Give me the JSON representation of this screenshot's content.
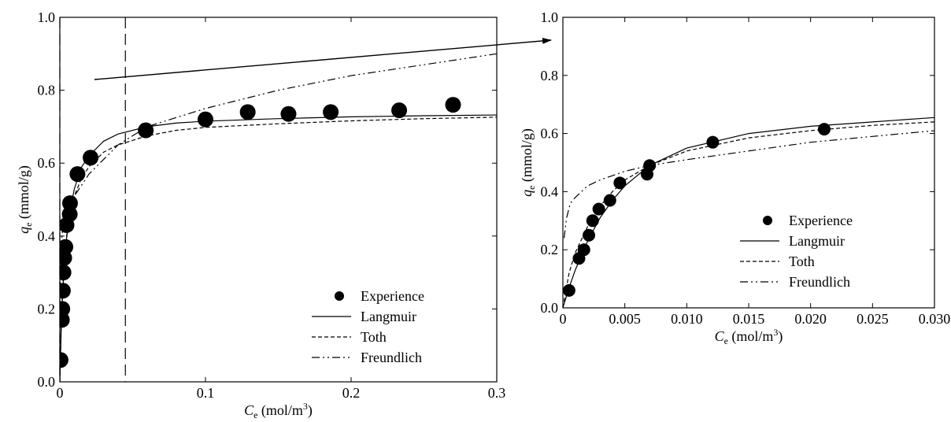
{
  "chart_data": [
    {
      "type": "scatter",
      "panel": "left",
      "title": "",
      "xlabel": {
        "var": "C",
        "sub": "e",
        "unit": " (mol/m",
        "sup": "3",
        "close": ")"
      },
      "ylabel": {
        "var": "q",
        "sub": "e",
        "unit": " (mmol/g)"
      },
      "xlim": [
        0,
        0.3
      ],
      "ylim": [
        0,
        1.0
      ],
      "xticks": [
        0,
        0.1,
        0.2,
        0.3
      ],
      "xtick_labels": [
        "0",
        "0.1",
        "0.2",
        "0.3"
      ],
      "yticks": [
        0,
        0.2,
        0.4,
        0.6,
        0.8,
        1.0
      ],
      "ytick_labels": [
        "0.0",
        "0.2",
        "0.4",
        "0.6",
        "0.8",
        "1.0"
      ],
      "grid": false,
      "legend_position": "bottom-right",
      "zoom_region_x": [
        0,
        0.045
      ],
      "series": [
        {
          "name": "Experience",
          "style": "markers",
          "x": [
            0.0005,
            0.0014,
            0.0017,
            0.0021,
            0.0025,
            0.003,
            0.0038,
            0.0046,
            0.0068,
            0.007,
            0.0121,
            0.0211,
            0.059,
            0.1,
            0.129,
            0.157,
            0.186,
            0.233,
            0.27
          ],
          "y": [
            0.06,
            0.17,
            0.2,
            0.25,
            0.3,
            0.34,
            0.37,
            0.43,
            0.46,
            0.49,
            0.57,
            0.615,
            0.69,
            0.72,
            0.74,
            0.735,
            0.74,
            0.745,
            0.76
          ]
        },
        {
          "name": "Langmuir",
          "style": "solid",
          "x": [
            0,
            0.001,
            0.002,
            0.004,
            0.006,
            0.008,
            0.01,
            0.015,
            0.02,
            0.03,
            0.04,
            0.06,
            0.08,
            0.1,
            0.15,
            0.2,
            0.25,
            0.3
          ],
          "y": [
            0,
            0.15,
            0.25,
            0.37,
            0.44,
            0.49,
            0.53,
            0.59,
            0.62,
            0.66,
            0.68,
            0.7,
            0.71,
            0.715,
            0.722,
            0.727,
            0.73,
            0.732
          ]
        },
        {
          "name": "Toth",
          "style": "dashed",
          "x": [
            0,
            0.001,
            0.002,
            0.004,
            0.006,
            0.008,
            0.01,
            0.015,
            0.02,
            0.03,
            0.04,
            0.06,
            0.08,
            0.1,
            0.15,
            0.2,
            0.25,
            0.3
          ],
          "y": [
            0,
            0.17,
            0.27,
            0.38,
            0.44,
            0.48,
            0.51,
            0.56,
            0.59,
            0.63,
            0.65,
            0.675,
            0.69,
            0.698,
            0.708,
            0.716,
            0.722,
            0.726
          ]
        },
        {
          "name": "Freundlich",
          "style": "dash-dot-dot",
          "x": [
            0.0001,
            0.0005,
            0.001,
            0.002,
            0.005,
            0.01,
            0.02,
            0.04,
            0.06,
            0.1,
            0.15,
            0.2,
            0.25,
            0.3
          ],
          "y": [
            0.24,
            0.35,
            0.38,
            0.42,
            0.47,
            0.51,
            0.57,
            0.65,
            0.7,
            0.75,
            0.8,
            0.84,
            0.87,
            0.9
          ]
        }
      ]
    },
    {
      "type": "scatter",
      "panel": "right",
      "title": "",
      "xlabel": {
        "var": "C",
        "sub": "e",
        "unit": " (mol/m",
        "sup": "3",
        "close": ")"
      },
      "ylabel": {
        "var": "q",
        "sub": "e",
        "unit": " (mmol/g)"
      },
      "xlim": [
        0,
        0.03
      ],
      "ylim": [
        0,
        1.0
      ],
      "xticks": [
        0,
        0.005,
        0.01,
        0.015,
        0.02,
        0.025,
        0.03
      ],
      "xtick_labels": [
        "0",
        "0.005",
        "0.010",
        "0.015",
        "0.020",
        "0.025",
        "0.030"
      ],
      "yticks": [
        0,
        0.2,
        0.4,
        0.6,
        0.8,
        1.0
      ],
      "ytick_labels": [
        "0.0",
        "0.2",
        "0.4",
        "0.6",
        "0.8",
        "1.0"
      ],
      "grid": false,
      "legend_position": "center-right",
      "series": [
        {
          "name": "Experience",
          "style": "markers",
          "x": [
            0.0005,
            0.0013,
            0.0017,
            0.0021,
            0.0024,
            0.0029,
            0.0038,
            0.0046,
            0.0068,
            0.007,
            0.0121,
            0.0211
          ],
          "y": [
            0.06,
            0.17,
            0.2,
            0.25,
            0.3,
            0.34,
            0.37,
            0.43,
            0.46,
            0.49,
            0.57,
            0.615
          ]
        },
        {
          "name": "Langmuir",
          "style": "solid",
          "x": [
            0,
            0.0005,
            0.001,
            0.002,
            0.003,
            0.004,
            0.005,
            0.007,
            0.01,
            0.015,
            0.02,
            0.025,
            0.03
          ],
          "y": [
            0,
            0.07,
            0.13,
            0.23,
            0.31,
            0.37,
            0.42,
            0.49,
            0.55,
            0.6,
            0.625,
            0.64,
            0.655
          ]
        },
        {
          "name": "Toth",
          "style": "dashed",
          "x": [
            0,
            0.0005,
            0.001,
            0.002,
            0.003,
            0.004,
            0.005,
            0.007,
            0.01,
            0.015,
            0.02,
            0.025,
            0.03
          ],
          "y": [
            0,
            0.12,
            0.19,
            0.28,
            0.35,
            0.4,
            0.44,
            0.49,
            0.54,
            0.585,
            0.61,
            0.628,
            0.64
          ]
        },
        {
          "name": "Freundlich",
          "style": "dash-dot-dot",
          "x": [
            0.0001,
            0.0003,
            0.0006,
            0.001,
            0.002,
            0.003,
            0.005,
            0.007,
            0.01,
            0.015,
            0.02,
            0.025,
            0.03
          ],
          "y": [
            0.24,
            0.31,
            0.36,
            0.38,
            0.42,
            0.44,
            0.47,
            0.49,
            0.51,
            0.54,
            0.57,
            0.59,
            0.61
          ]
        }
      ]
    }
  ]
}
